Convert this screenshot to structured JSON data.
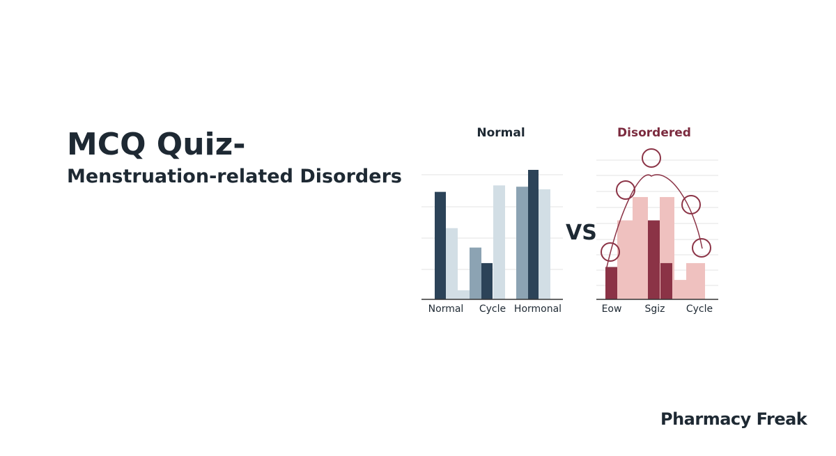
{
  "title": {
    "line1": "MCQ Quiz-",
    "line2": "Menstruation-related Disorders"
  },
  "vs_label": "VS",
  "brand": "Pharmacy Freak",
  "colors": {
    "text": "#1e2933",
    "normal_dark": "#2c4358",
    "normal_mid": "#8ca3b3",
    "normal_light": "#d2dee5",
    "disordered_dark": "#8b3346",
    "disordered_light": "#efc1bf",
    "disordered_title": "#7b2a3e",
    "grid": "#e3e3e3"
  },
  "chart_data": [
    {
      "type": "bar",
      "title": "Normal",
      "categories": [
        "Normal",
        "Cycle",
        "Hormonal"
      ],
      "series": [
        {
          "values": [
            0.83,
            0.4,
            0.87
          ]
        },
        {
          "values": [
            0.55,
            0.88,
            1.0
          ]
        },
        {
          "values": [
            0.07,
            0.28,
            0.85
          ]
        }
      ],
      "grid": true
    },
    {
      "type": "bar",
      "title": "Disordered",
      "categories": [
        "Eow",
        "Sgiz",
        "Cycle"
      ],
      "series": [
        {
          "values": [
            0.25,
            0.61,
            0.15
          ]
        },
        {
          "values": [
            0.61,
            0.79,
            0.28
          ]
        },
        {
          "values": [
            0.79,
            0.28,
            0.07
          ]
        }
      ],
      "grid": true
    }
  ]
}
